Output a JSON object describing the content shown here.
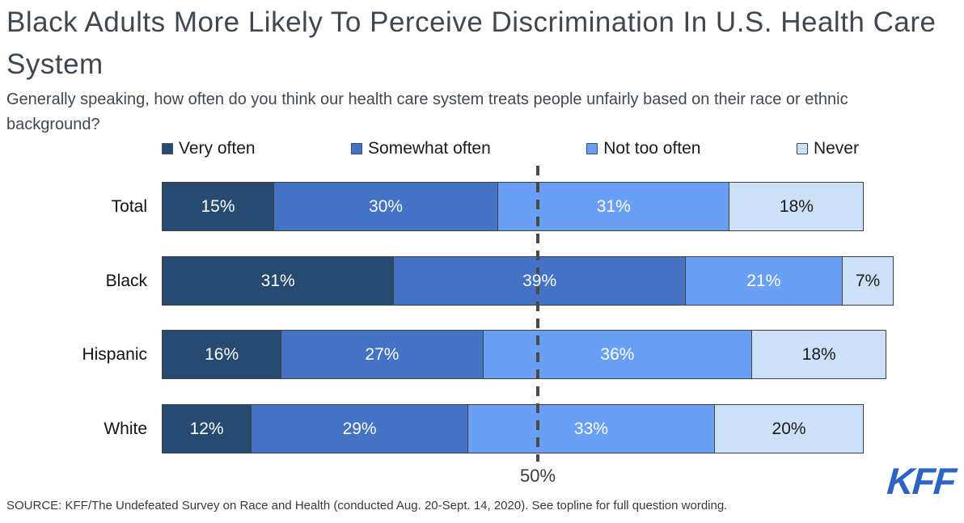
{
  "header": {
    "title": "Black Adults More Likely To Perceive Discrimination In U.S. Health Care System",
    "subtitle": "Generally speaking, how often do you think our health care system treats people unfairly based on their race or ethnic background?"
  },
  "chart_data": {
    "type": "bar",
    "orientation": "horizontal",
    "stacked": true,
    "unit": "%",
    "xlim": [
      0,
      100
    ],
    "legend_position": "top",
    "grid": false,
    "categories": [
      "Total",
      "Black",
      "Hispanic",
      "White"
    ],
    "series": [
      {
        "name": "Very often",
        "color": "#274a71",
        "values": [
          15,
          31,
          16,
          12
        ]
      },
      {
        "name": "Somewhat often",
        "color": "#4472c4",
        "values": [
          30,
          39,
          27,
          29
        ]
      },
      {
        "name": "Not too often",
        "color": "#69a0f5",
        "values": [
          31,
          21,
          36,
          33
        ]
      },
      {
        "name": "Never",
        "color": "#cce1f8",
        "values": [
          18,
          7,
          18,
          20
        ]
      }
    ],
    "reference_line": {
      "value": 50,
      "label": "50%",
      "style": "dashed",
      "color": "#4a4a4a"
    },
    "bar_border_color": "#404040",
    "label_color_on_dark": "#ffffff",
    "label_color_on_light": "#1a1a1a"
  },
  "footer": {
    "source": "SOURCE: KFF/The Undefeated Survey on Race and Health (conducted Aug. 20-Sept. 14, 2020). See topline for full question wording.",
    "logo_text": "KFF",
    "logo_color": "#2e63c6"
  }
}
